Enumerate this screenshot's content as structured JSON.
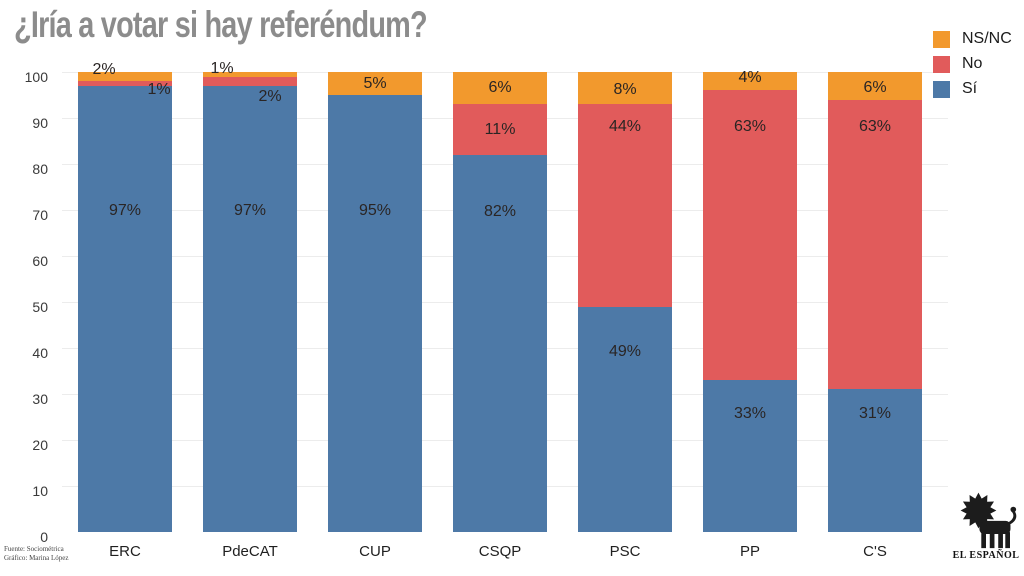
{
  "title": "¿Iría a votar si hay referéndum?",
  "colors": {
    "si": "#4d79a7",
    "no": "#e15b5b",
    "nsnc": "#f2992d",
    "title_gray": "#8c8c8c",
    "grid": "#ececec"
  },
  "legend": [
    {
      "label": "NS/NC",
      "color": "#f2992d"
    },
    {
      "label": "No",
      "color": "#e15b5b"
    },
    {
      "label": "Sí",
      "color": "#4d79a7"
    }
  ],
  "chart_data": {
    "type": "bar",
    "stacked": true,
    "title": "¿Iría a votar si hay referéndum?",
    "categories": [
      "ERC",
      "PdeCAT",
      "CUP",
      "CSQP",
      "PSC",
      "PP",
      "C'S"
    ],
    "series": [
      {
        "name": "Sí",
        "color": "#4d79a7",
        "values": [
          97,
          97,
          95,
          82,
          49,
          33,
          31
        ],
        "labels": [
          "97%",
          "97%",
          "95%",
          "82%",
          "49%",
          "33%",
          "31%"
        ]
      },
      {
        "name": "No",
        "color": "#e15b5b",
        "values": [
          1,
          2,
          0,
          11,
          44,
          63,
          63
        ],
        "labels": [
          "1%",
          "2%",
          null,
          "11%",
          "44%",
          "63%",
          "63%"
        ]
      },
      {
        "name": "NS/NC",
        "color": "#f2992d",
        "values": [
          2,
          1,
          5,
          6,
          8,
          4,
          6
        ],
        "labels": [
          "2%",
          "1%",
          "5%",
          "6%",
          "8%",
          "4%",
          "6%"
        ]
      }
    ],
    "xlabel": "",
    "ylabel": "",
    "ylim": [
      0,
      100
    ],
    "yticks": [
      0,
      10,
      20,
      30,
      40,
      50,
      60,
      70,
      80,
      90,
      100
    ],
    "grid": true,
    "legend_position": "top-right"
  },
  "source": {
    "line1": "Fuente: Sociométrica",
    "line2": "Gráfico: Marina López"
  },
  "logo": {
    "text": "EL ESPAÑOL"
  }
}
